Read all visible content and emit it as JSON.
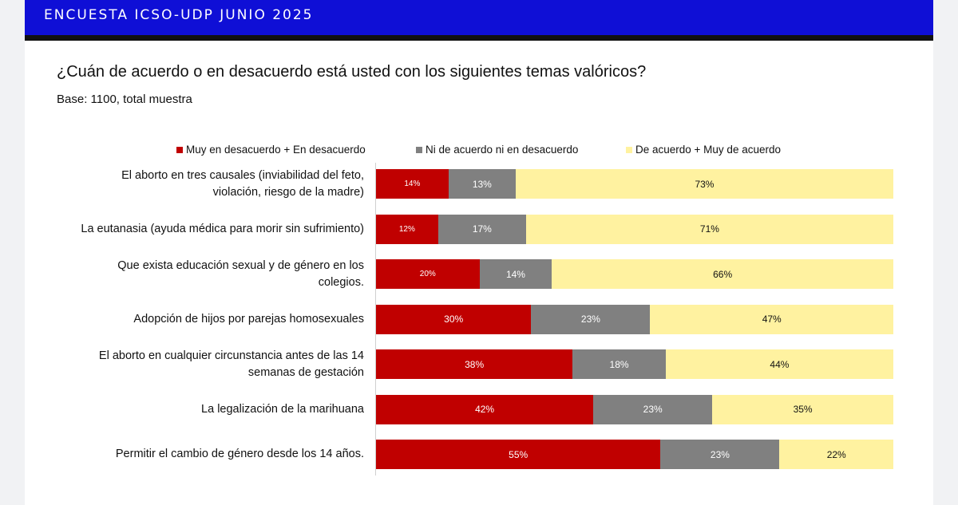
{
  "banner": {
    "title": "ENCUESTA ICSO-UDP JUNIO 2025"
  },
  "question": {
    "title": "¿Cuán de acuerdo o en desacuerdo está usted con los siguientes temas valóricos?",
    "base": "Base: 1100, total muestra"
  },
  "colors": {
    "banner": "#0f0fd6",
    "disagree": "#c00000",
    "neutral": "#808080",
    "agree": "#fff2a0"
  },
  "chart_data": {
    "type": "bar",
    "orientation": "horizontal",
    "stacked": true,
    "title": "",
    "xlabel": "",
    "ylabel": "",
    "xlim": [
      0,
      100
    ],
    "grid": false,
    "legend_position": "top",
    "categories": [
      [
        "El aborto en tres causales (inviabilidad del feto,",
        "violación, riesgo de la madre)"
      ],
      [
        "La eutanasia (ayuda médica para morir sin sufrimiento)"
      ],
      [
        "Que exista educación sexual y de género en los",
        "colegios."
      ],
      [
        "Adopción de hijos por parejas homosexuales"
      ],
      [
        "El aborto en cualquier circunstancia antes de las 14",
        "semanas de gestación"
      ],
      [
        "La legalización de la marihuana"
      ],
      [
        "Permitir el cambio de género desde los 14 años."
      ]
    ],
    "series": [
      {
        "name": "Muy en desacuerdo + En desacuerdo",
        "color": "#c00000",
        "label_color": "#ffffff",
        "values": [
          14,
          12,
          20,
          30,
          38,
          42,
          55
        ],
        "labels": [
          "14%",
          "12%",
          "20%",
          "30%",
          "38%",
          "42%",
          "55%"
        ]
      },
      {
        "name": "Ni de acuerdo ni en desacuerdo",
        "color": "#808080",
        "label_color": "#ffffff",
        "values": [
          13,
          17,
          14,
          23,
          18,
          23,
          23
        ],
        "labels": [
          "13%",
          "17%",
          "14%",
          "23%",
          "18%",
          "23%",
          "23%"
        ]
      },
      {
        "name": "De acuerdo + Muy de acuerdo",
        "color": "#fff2a0",
        "label_color": "#111111",
        "values": [
          73,
          71,
          66,
          47,
          44,
          35,
          22
        ],
        "labels": [
          "73%",
          "71%",
          "66%",
          "47%",
          "44%",
          "35%",
          "22%"
        ]
      }
    ]
  }
}
